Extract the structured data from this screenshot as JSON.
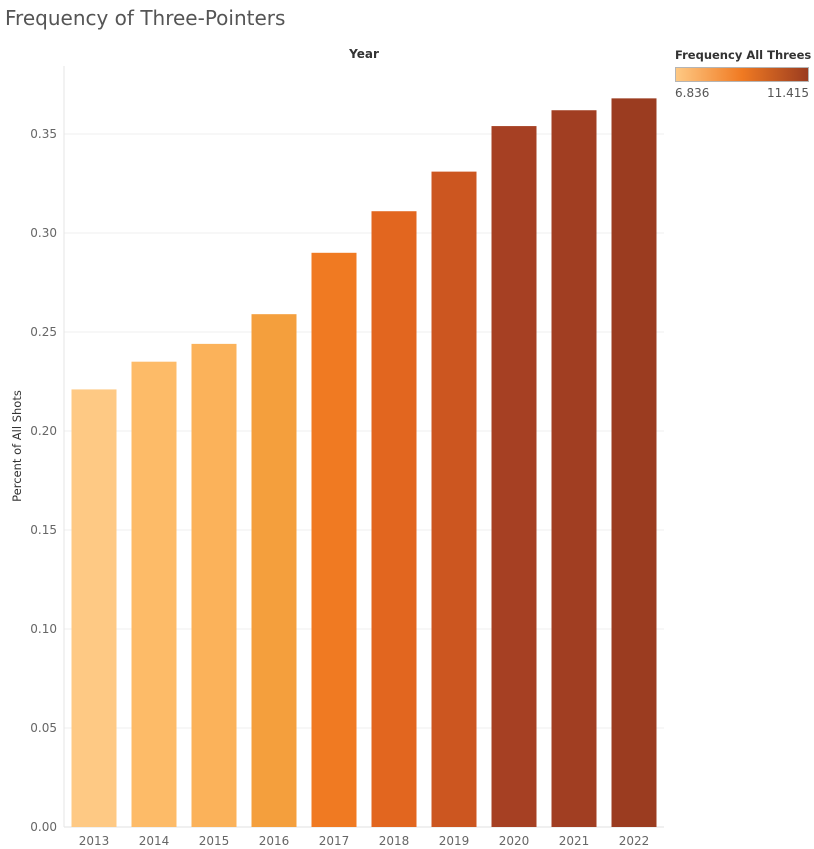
{
  "title": "Frequency of Three-Pointers",
  "legend": {
    "title": "Frequency All Threes",
    "min_label": "6.836",
    "max_label": "11.415",
    "min_color": "#fec984",
    "mid_color": "#f07a22",
    "max_color": "#9b3c20"
  },
  "chart_data": {
    "type": "bar",
    "title": "Frequency of Three-Pointers",
    "column_header": "Year",
    "xlabel": "",
    "ylabel": "Percent of All Shots",
    "categories": [
      "2013",
      "2014",
      "2015",
      "2016",
      "2017",
      "2018",
      "2019",
      "2020",
      "2021",
      "2022"
    ],
    "values": [
      0.221,
      0.235,
      0.244,
      0.259,
      0.29,
      0.311,
      0.331,
      0.354,
      0.362,
      0.368
    ],
    "colors": [
      "#fec984",
      "#fdbb68",
      "#fbb25a",
      "#f49f3d",
      "#f07a22",
      "#e2661f",
      "#cc5620",
      "#a64023",
      "#a13e22",
      "#9b3c20"
    ],
    "ylim": [
      0,
      0.38
    ],
    "yticks": [
      0.0,
      0.05,
      0.1,
      0.15,
      0.2,
      0.25,
      0.3,
      0.35
    ],
    "ytick_labels": [
      "0.00",
      "0.05",
      "0.10",
      "0.15",
      "0.20",
      "0.25",
      "0.30",
      "0.35"
    ],
    "grid": true,
    "legend_position": "top-right"
  }
}
